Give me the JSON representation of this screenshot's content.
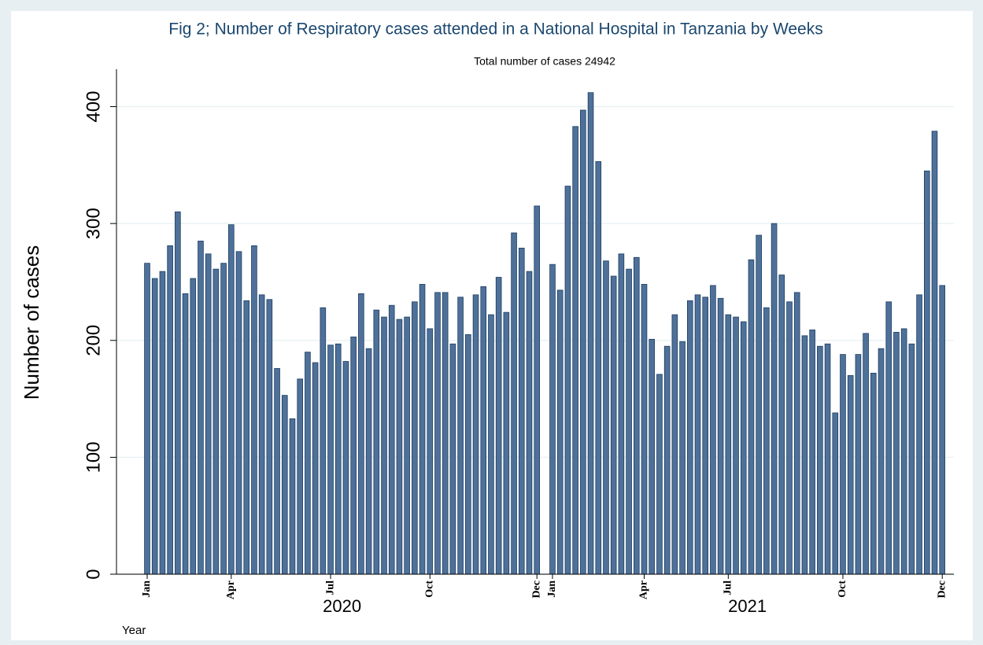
{
  "chart_data": {
    "type": "bar",
    "title": "Fig 2; Number of Respiratory cases attended in a National Hospital in Tanzania by Weeks",
    "subtitle": "Total number of cases 24942",
    "ylabel": "Number of cases",
    "xlabel": "Year",
    "groups": [
      "2020",
      "2021"
    ],
    "categories": [
      "Jan",
      null,
      null,
      null,
      null,
      null,
      null,
      null,
      null,
      null,
      null,
      "Apr",
      null,
      null,
      null,
      null,
      null,
      null,
      null,
      null,
      null,
      null,
      null,
      null,
      "Jul",
      null,
      null,
      null,
      null,
      null,
      null,
      null,
      null,
      null,
      null,
      null,
      null,
      "Oct",
      null,
      null,
      null,
      null,
      null,
      null,
      null,
      null,
      null,
      null,
      null,
      null,
      null,
      "Dec",
      "Jan",
      null,
      null,
      null,
      null,
      null,
      null,
      null,
      null,
      null,
      null,
      null,
      "Apr",
      null,
      null,
      null,
      null,
      null,
      null,
      null,
      null,
      null,
      null,
      "Jul",
      null,
      null,
      null,
      null,
      null,
      null,
      null,
      null,
      null,
      null,
      null,
      null,
      null,
      null,
      "Oct",
      null,
      null,
      null,
      null,
      null,
      null,
      null,
      null,
      null,
      null,
      null,
      null,
      "Dec"
    ],
    "values": [
      266,
      253,
      259,
      281,
      310,
      240,
      253,
      285,
      274,
      261,
      266,
      299,
      276,
      234,
      281,
      239,
      235,
      176,
      153,
      133,
      167,
      190,
      181,
      228,
      196,
      197,
      182,
      203,
      240,
      193,
      226,
      220,
      230,
      218,
      220,
      233,
      248,
      210,
      241,
      241,
      197,
      237,
      205,
      239,
      246,
      222,
      254,
      224,
      292,
      279,
      259,
      315,
      265,
      243,
      332,
      383,
      397,
      412,
      353,
      268,
      255,
      274,
      261,
      271,
      248,
      201,
      171,
      195,
      222,
      199,
      234,
      239,
      237,
      247,
      236,
      222,
      220,
      216,
      269,
      290,
      228,
      300,
      256,
      233,
      241,
      204,
      209,
      195,
      197,
      138,
      188,
      170,
      188,
      206,
      172,
      193,
      233,
      207,
      210,
      197,
      239,
      345,
      379,
      247
    ],
    "color": "#4f7199",
    "ylim": [
      0,
      432
    ],
    "yticks": [
      0,
      100,
      200,
      300,
      400
    ],
    "grid": true
  }
}
